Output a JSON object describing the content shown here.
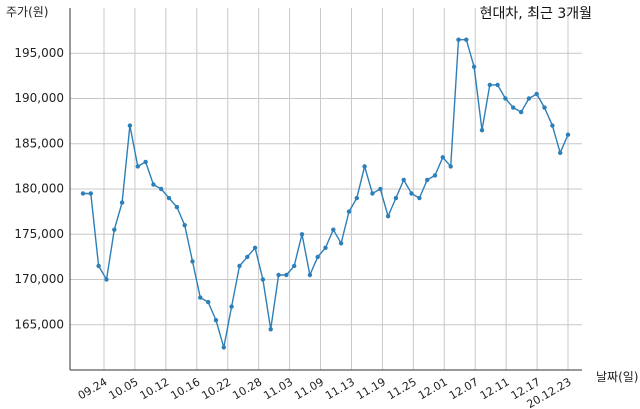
{
  "chart_data": {
    "type": "line",
    "title": "현대차, 최근 3개월",
    "ylabel": "주가(원)",
    "xlabel": "날짜(일)",
    "ylim": [
      160000,
      200000
    ],
    "yticks": [
      165000,
      170000,
      175000,
      180000,
      185000,
      190000,
      195000
    ],
    "ytick_labels": [
      "165,000",
      "170,000",
      "175,000",
      "180,000",
      "185,000",
      "190,000",
      "195,000"
    ],
    "xtick_labels": [
      "09.24",
      "10.05",
      "10.12",
      "10.16",
      "10.22",
      "10.28",
      "11.03",
      "11.09",
      "11.13",
      "11.19",
      "11.25",
      "12.01",
      "12.07",
      "12.11",
      "12.17",
      "20.12.23"
    ],
    "grid": true,
    "line_color": "#2c7fb8",
    "series": [
      {
        "values": [
          179500,
          179500,
          171500,
          170000,
          175500,
          178500,
          187000,
          182500,
          183000,
          180500,
          180000,
          179000,
          178000,
          176000,
          172000,
          168000,
          167500,
          165500,
          162500,
          167000,
          171500,
          172500,
          173500,
          170000,
          164500,
          170500,
          170500,
          171500,
          175000,
          170500,
          172500,
          173500,
          175500,
          174000,
          177500,
          179000,
          182500,
          179500,
          180000,
          177000,
          179000,
          181000,
          179500,
          179000,
          181000,
          181500,
          183500,
          182500,
          196500,
          196500,
          193500,
          186500,
          191500,
          191500,
          190000,
          189000,
          188500,
          190000,
          190500,
          189000,
          187000,
          184000,
          186000
        ]
      }
    ]
  }
}
